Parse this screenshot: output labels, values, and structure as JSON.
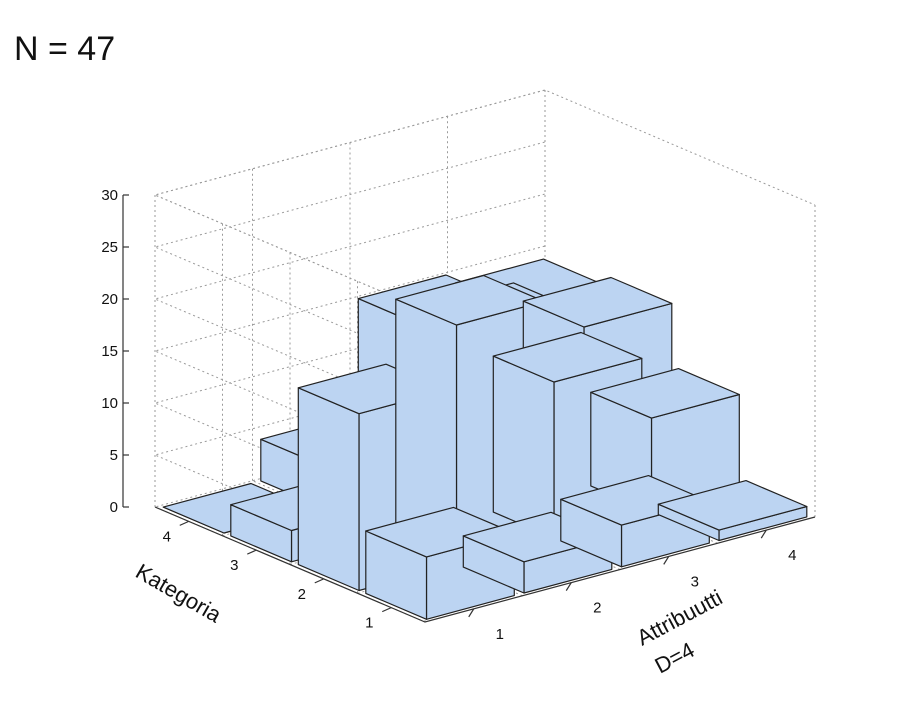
{
  "header": {
    "title": "N = 47"
  },
  "chart_data": {
    "type": "bar3d",
    "x": [
      1,
      2,
      3,
      4
    ],
    "y": [
      1,
      2,
      3,
      4
    ],
    "xlabel": "Attribuutti",
    "xlabel_sub": "D=4",
    "ylabel": "Kategoria",
    "zlim": [
      0,
      30
    ],
    "zticks": [
      0,
      5,
      10,
      15,
      20,
      25,
      30
    ],
    "grid": true,
    "bar_color": "#bcd4f2",
    "edge_color": "#222222",
    "bars": [
      {
        "x": 1,
        "y": 1,
        "z": 6
      },
      {
        "x": 1,
        "y": 2,
        "z": 17
      },
      {
        "x": 1,
        "y": 3,
        "z": 3
      },
      {
        "x": 1,
        "y": 4,
        "z": 0
      },
      {
        "x": 2,
        "y": 1,
        "z": 3
      },
      {
        "x": 2,
        "y": 2,
        "z": 23
      },
      {
        "x": 2,
        "y": 3,
        "z": 7
      },
      {
        "x": 2,
        "y": 4,
        "z": 4
      },
      {
        "x": 3,
        "y": 1,
        "z": 4
      },
      {
        "x": 3,
        "y": 2,
        "z": 15
      },
      {
        "x": 3,
        "y": 3,
        "z": 17
      },
      {
        "x": 3,
        "y": 4,
        "z": 15
      },
      {
        "x": 4,
        "y": 1,
        "z": 1
      },
      {
        "x": 4,
        "y": 2,
        "z": 9
      },
      {
        "x": 4,
        "y": 3,
        "z": 15
      },
      {
        "x": 4,
        "y": 4,
        "z": 14
      }
    ]
  }
}
